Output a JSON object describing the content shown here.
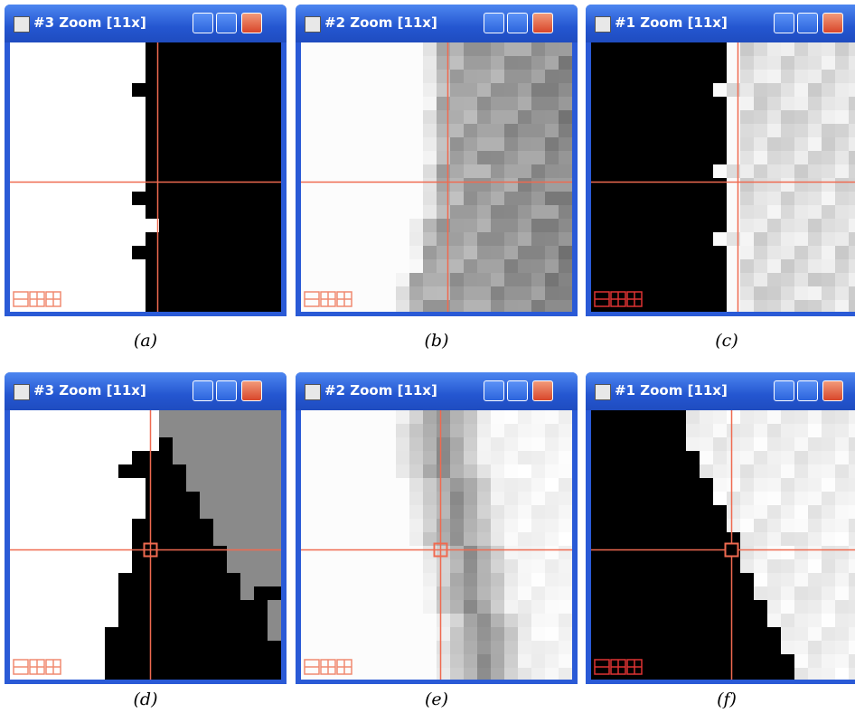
{
  "panels": [
    {
      "title": "#3 Zoom [11x]",
      "caption": "(a)"
    },
    {
      "title": "#2 Zoom [11x]",
      "caption": "(b)"
    },
    {
      "title": "#1 Zoom [11x]",
      "caption": "(c)"
    },
    {
      "title": "#3 Zoom [11x]",
      "caption": "(d)"
    },
    {
      "title": "#2 Zoom [11x]",
      "caption": "(e)"
    },
    {
      "title": "#1 Zoom [11x]",
      "caption": "(f)"
    }
  ]
}
